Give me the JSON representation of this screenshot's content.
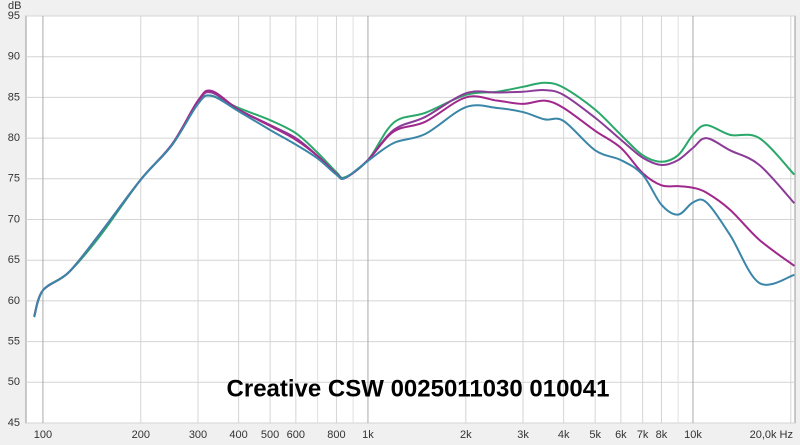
{
  "chart_data": {
    "type": "line",
    "title": "Creative CSW 0025011030 010041",
    "y_label": "dB",
    "xscale": "log",
    "grid": true,
    "xlim": [
      88.7,
      20600
    ],
    "ylim": [
      45,
      95
    ],
    "yticks": [
      45,
      50,
      55,
      60,
      65,
      70,
      75,
      80,
      85,
      90,
      95
    ],
    "xticks": [
      100,
      200,
      300,
      400,
      500,
      600,
      800,
      {
        "value": 1000,
        "label": "1k"
      },
      {
        "value": 2000,
        "label": "2k"
      },
      {
        "value": 3000,
        "label": "3k"
      },
      {
        "value": 4000,
        "label": "4k"
      },
      {
        "value": 5000,
        "label": "5k"
      },
      {
        "value": 6000,
        "label": "6k"
      },
      {
        "value": 7000,
        "label": "7k"
      },
      {
        "value": 8000,
        "label": "8k"
      },
      {
        "value": 10000,
        "label": "10k"
      },
      {
        "value": 20000,
        "label": "20,0k Hz"
      }
    ],
    "xminor": [
      700,
      900,
      9000
    ],
    "x": [
      94,
      100,
      120,
      150,
      200,
      250,
      300,
      330,
      400,
      500,
      600,
      700,
      800,
      850,
      1000,
      1200,
      1500,
      2000,
      2500,
      3000,
      3500,
      4000,
      5000,
      6000,
      7000,
      8000,
      9000,
      10000,
      11000,
      13000,
      16000,
      20500
    ],
    "series": [
      {
        "color": "#2aa86a",
        "values": [
          58.1,
          61.3,
          63.5,
          68,
          74.9,
          79.2,
          84.3,
          85.2,
          83.7,
          82.2,
          80.6,
          78.2,
          75.8,
          75.2,
          77.3,
          81.9,
          83.1,
          85.3,
          85.7,
          86.3,
          86.8,
          86.2,
          83.5,
          80.4,
          77.9,
          77.1,
          77.9,
          80.4,
          81.6,
          80.4,
          80.0,
          75.5
        ]
      },
      {
        "color": "#8a3c96",
        "values": [
          58.1,
          61.3,
          63.5,
          68.3,
          74.9,
          79.2,
          84.5,
          85.6,
          83.5,
          81.6,
          80.0,
          77.8,
          75.6,
          75.1,
          77.3,
          81.0,
          82.6,
          85.5,
          85.6,
          85.7,
          85.9,
          85.3,
          82.5,
          79.8,
          77.6,
          76.7,
          77.3,
          78.8,
          80.0,
          78.5,
          76.7,
          72.0
        ]
      },
      {
        "color": "#a0288c",
        "values": [
          58.1,
          61.3,
          63.5,
          68.3,
          74.9,
          79.3,
          84.6,
          85.8,
          83.5,
          81.5,
          79.8,
          77.8,
          75.6,
          75.1,
          77.3,
          80.8,
          82.0,
          85.0,
          84.6,
          84.2,
          84.6,
          83.7,
          80.9,
          78.8,
          75.7,
          74.2,
          74.1,
          73.9,
          73.3,
          71.2,
          67.5,
          64.3
        ]
      },
      {
        "color": "#3a86a8",
        "values": [
          58.0,
          61.3,
          63.5,
          68.3,
          74.9,
          79.2,
          84.2,
          85.2,
          83.3,
          81.0,
          79.2,
          77.5,
          75.5,
          75.1,
          77.2,
          79.4,
          80.5,
          83.8,
          83.7,
          83.2,
          82.3,
          82.1,
          78.5,
          77.3,
          75.5,
          71.8,
          70.6,
          72.1,
          72.1,
          68.1,
          62.2,
          63.2
        ]
      }
    ]
  }
}
